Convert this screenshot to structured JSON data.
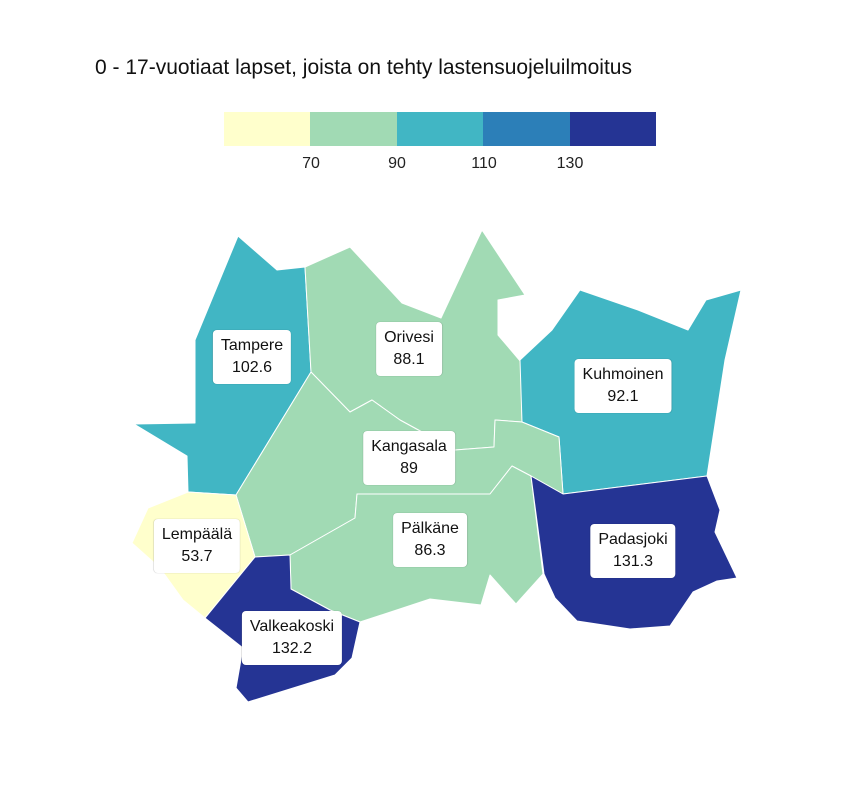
{
  "title": "0 - 17-vuotiaat lapset, joista on tehty lastensuojeluilmoitus",
  "legend": {
    "colors": [
      "#ffffcc",
      "#a1dab4",
      "#41b6c4",
      "#2c7fb8",
      "#253494"
    ],
    "ticks": [
      "70",
      "90",
      "110",
      "130"
    ]
  },
  "regions": {
    "tampere": {
      "name": "Tampere",
      "value": "102.6",
      "color": "#41b6c4"
    },
    "orivesi": {
      "name": "Orivesi",
      "value": "88.1",
      "color": "#a1dab4"
    },
    "kuhmoinen": {
      "name": "Kuhmoinen",
      "value": "92.1",
      "color": "#41b6c4"
    },
    "kangasala": {
      "name": "Kangasala",
      "value": "89",
      "color": "#a1dab4"
    },
    "lempaala": {
      "name": "Lempäälä",
      "value": "53.7",
      "color": "#ffffcc"
    },
    "palkane": {
      "name": "Pälkäne",
      "value": "86.3",
      "color": "#a1dab4"
    },
    "padasjoki": {
      "name": "Padasjoki",
      "value": "131.3",
      "color": "#253494"
    },
    "valkeakoski": {
      "name": "Valkeakoski",
      "value": "132.2",
      "color": "#253494"
    }
  }
}
